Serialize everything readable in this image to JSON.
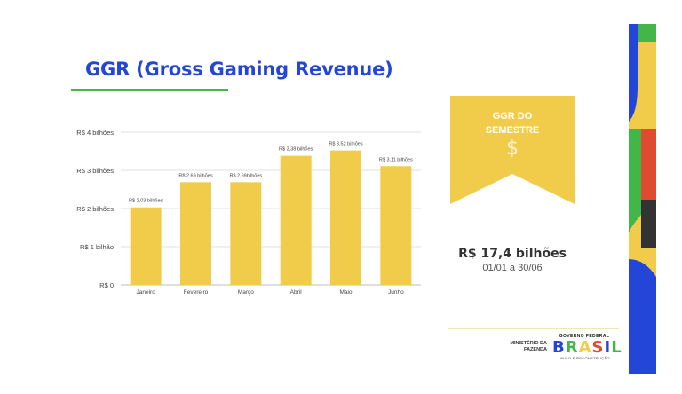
{
  "slide": {
    "title": "GGR (Gross Gaming Revenue)"
  },
  "banner": {
    "title_line1": "GGR DO",
    "title_line2": "SEMESTRE",
    "icon": "dollar-icon",
    "icon_glyph": "$"
  },
  "summary": {
    "total": "R$ 17,4 bilhões",
    "period": "01/01 a 30/06"
  },
  "footer": {
    "ministry_line1": "MINISTÉRIO DA",
    "ministry_line2": "FAZENDA",
    "gov_top": "GOVERNO FEDERAL",
    "gov_word": [
      "B",
      "R",
      "A",
      "S",
      "I",
      "L"
    ],
    "gov_bottom": "UNIÃO E RECONSTRUÇÃO"
  },
  "colors": {
    "bar": "#f1cc4a",
    "title": "#2346d8",
    "accent_green": "#43b649",
    "accent_yellow": "#f1cc4a",
    "accent_red": "#e04a2f",
    "accent_blue": "#2346d8",
    "accent_black": "#333333"
  },
  "chart_data": {
    "type": "bar",
    "categories": [
      "Janeiro",
      "Fevereiro",
      "Março",
      "Abril",
      "Maio",
      "Junho"
    ],
    "values": [
      2.03,
      2.69,
      2.69,
      3.38,
      3.52,
      3.11
    ],
    "data_labels": [
      "R$ 2,03 bilhões",
      "R$ 2,69 bilhões",
      "R$ 2,69bilhões",
      "R$ 3,38 bilhões",
      "R$ 3,52 bilhões",
      "R$ 3,11 bilhões"
    ],
    "y_ticks": [
      0,
      1,
      2,
      3,
      4
    ],
    "y_tick_labels": [
      "R$ 0",
      "R$ 1 bilhão",
      "R$ 2 bilhões",
      "R$ 3 bilhões",
      "R$ 4 bilhões"
    ],
    "ylim": [
      0,
      4
    ],
    "grid": true,
    "legend": "none"
  }
}
